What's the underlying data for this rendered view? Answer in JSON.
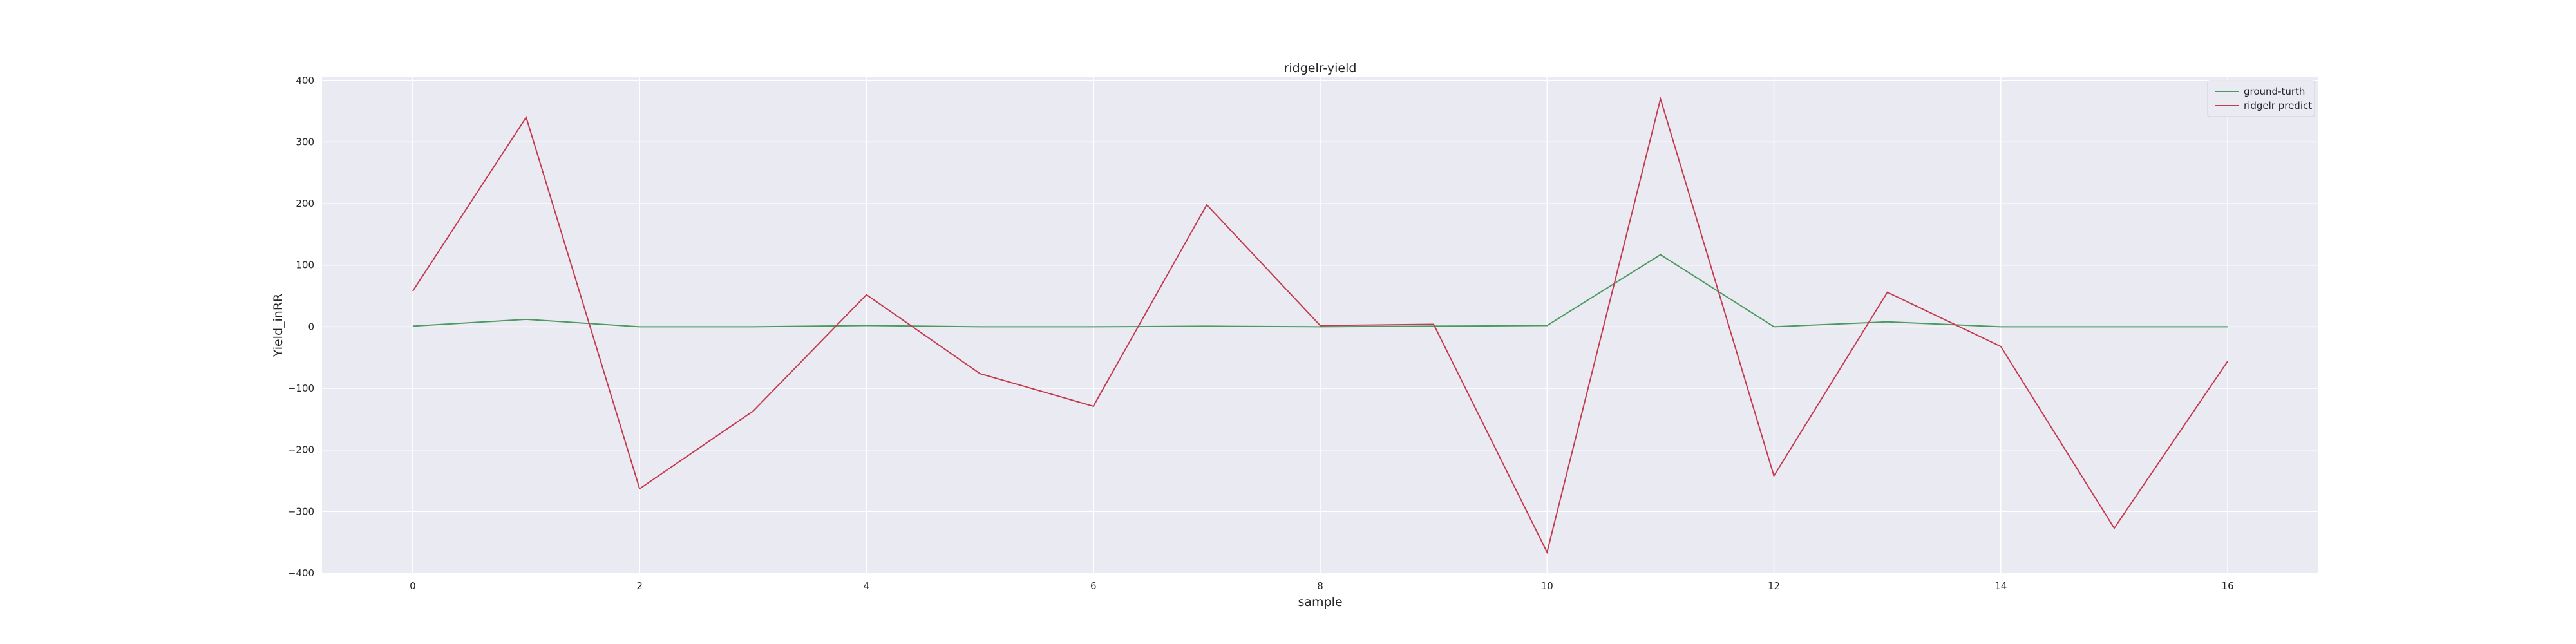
{
  "chart_data": {
    "type": "line",
    "title": "ridgelr-yield",
    "xlabel": "sample",
    "ylabel": "Yield_inRR",
    "x": [
      0,
      1,
      2,
      3,
      4,
      5,
      6,
      7,
      8,
      9,
      10,
      11,
      12,
      13,
      14,
      15,
      16
    ],
    "xticks": [
      0,
      2,
      4,
      6,
      8,
      10,
      12,
      14,
      16
    ],
    "yticks": [
      -400,
      -300,
      -200,
      -100,
      0,
      100,
      200,
      300,
      400
    ],
    "xlim": [
      -0.8,
      16.8
    ],
    "ylim": [
      -400,
      405
    ],
    "grid": true,
    "legend_position": "top-right",
    "series": [
      {
        "name": "ground-turth",
        "color": "#4c9a5f",
        "values": [
          1,
          12,
          0,
          0,
          2,
          0,
          0,
          1,
          0,
          1,
          2,
          117,
          0,
          8,
          0,
          0,
          0
        ]
      },
      {
        "name": "ridgelr predict",
        "color": "#c33b4f",
        "values": [
          58,
          340,
          -263,
          -137,
          52,
          -76,
          -129,
          198,
          2,
          4,
          -366,
          370,
          -242,
          56,
          -32,
          -327,
          -56
        ]
      }
    ]
  }
}
